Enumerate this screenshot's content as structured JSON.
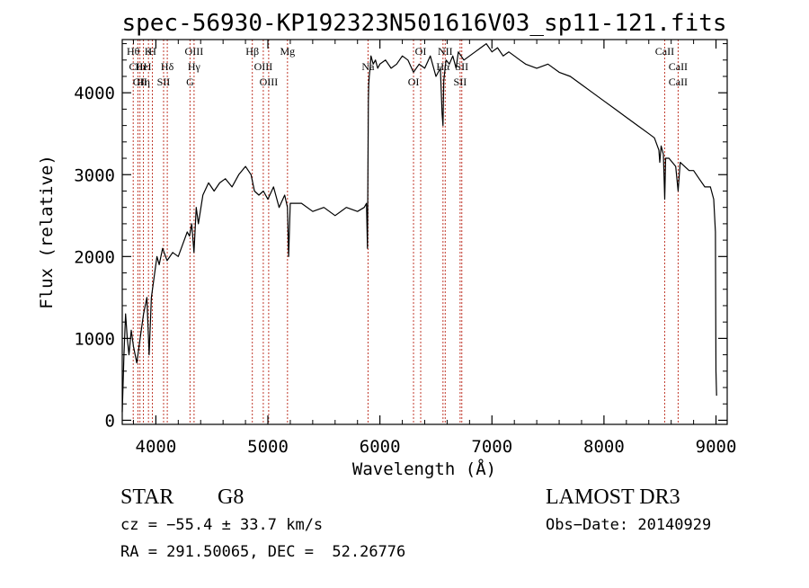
{
  "chart_data": {
    "type": "line",
    "title": "spec-56930-KP192323N501616V03_sp11-121.fits",
    "xlabel": "Wavelength (Å)",
    "ylabel": "Flux (relative)",
    "xlim": [
      3700,
      9100
    ],
    "ylim": [
      -50,
      4650
    ],
    "x_ticks": [
      4000,
      5000,
      6000,
      7000,
      8000,
      9000
    ],
    "y_ticks": [
      0,
      1000,
      2000,
      3000,
      4000
    ],
    "grid": false,
    "series": [
      {
        "x": [
          3700,
          3715,
          3730,
          3745,
          3760,
          3780,
          3800,
          3830,
          3860,
          3890,
          3920,
          3940,
          3960,
          3990,
          4010,
          4030,
          4060,
          4100,
          4150,
          4200,
          4240,
          4280,
          4300,
          4320,
          4340,
          4360,
          4380,
          4420,
          4470,
          4520,
          4570,
          4620,
          4680,
          4740,
          4800,
          4850,
          4880,
          4920,
          4960,
          5000,
          5050,
          5100,
          5150,
          5175,
          5185,
          5200,
          5300,
          5400,
          5500,
          5600,
          5700,
          5800,
          5860,
          5880,
          5889,
          5893,
          5897,
          5900,
          5905,
          5912,
          5920,
          5940,
          5960,
          5980,
          6000,
          6050,
          6100,
          6150,
          6200,
          6250,
          6300,
          6350,
          6400,
          6450,
          6500,
          6540,
          6555,
          6563,
          6570,
          6590,
          6620,
          6650,
          6680,
          6700,
          6750,
          6800,
          6850,
          6900,
          6950,
          7000,
          7050,
          7100,
          7150,
          7200,
          7250,
          7300,
          7400,
          7500,
          7600,
          7700,
          7800,
          7900,
          8000,
          8100,
          8200,
          8300,
          8400,
          8450,
          8490,
          8498,
          8510,
          8530,
          8542,
          8550,
          8580,
          8640,
          8662,
          8680,
          8720,
          8760,
          8800,
          8850,
          8900,
          8950,
          8980,
          8995,
          9000,
          9005
        ],
        "y": [
          100,
          800,
          1300,
          1000,
          800,
          1100,
          900,
          700,
          1000,
          1300,
          1500,
          800,
          1500,
          1800,
          2000,
          1900,
          2100,
          1950,
          2050,
          2000,
          2150,
          2300,
          2250,
          2400,
          2050,
          2600,
          2400,
          2750,
          2900,
          2800,
          2900,
          2950,
          2850,
          3000,
          3100,
          3000,
          2800,
          2750,
          2800,
          2700,
          2850,
          2600,
          2750,
          2600,
          2000,
          2650,
          2650,
          2550,
          2600,
          2500,
          2600,
          2550,
          2600,
          2650,
          2100,
          3000,
          3900,
          4100,
          4200,
          4300,
          4450,
          4350,
          4400,
          4300,
          4350,
          4400,
          4300,
          4350,
          4450,
          4400,
          4250,
          4350,
          4300,
          4450,
          4200,
          4300,
          3750,
          3600,
          4150,
          4400,
          4350,
          4450,
          4300,
          4500,
          4400,
          4450,
          4500,
          4550,
          4600,
          4500,
          4550,
          4450,
          4500,
          4450,
          4400,
          4350,
          4300,
          4350,
          4250,
          4200,
          4100,
          4000,
          3900,
          3800,
          3700,
          3600,
          3500,
          3450,
          3300,
          3150,
          3350,
          3250,
          2700,
          3200,
          3200,
          3100,
          2800,
          3150,
          3100,
          3050,
          3050,
          2950,
          2850,
          2850,
          2700,
          2300,
          600,
          300
        ]
      }
    ],
    "annotations": [
      {
        "label": "Hθ",
        "x": 3798
      },
      {
        "label": "CIII",
        "x": 3840
      },
      {
        "label": "CII",
        "x": 3858
      },
      {
        "label": "K",
        "x": 3934
      },
      {
        "label": "HeI",
        "x": 3889
      },
      {
        "label": "Hη",
        "x": 3889
      },
      {
        "label": "H",
        "x": 3969
      },
      {
        "label": "Hδ",
        "x": 4102
      },
      {
        "label": "SII",
        "x": 4069
      },
      {
        "label": "OIII",
        "x": 4341
      },
      {
        "label": "Hγ",
        "x": 4341
      },
      {
        "label": "G",
        "x": 4305
      },
      {
        "label": "Hβ",
        "x": 4861
      },
      {
        "label": "OIII",
        "x": 4959
      },
      {
        "label": "OIII",
        "x": 5007
      },
      {
        "label": "Mg",
        "x": 5175
      },
      {
        "label": "Na",
        "x": 5894
      },
      {
        "label": "OI",
        "x": 6300
      },
      {
        "label": "OI",
        "x": 6364
      },
      {
        "label": "Hα",
        "x": 6563
      },
      {
        "label": "SII",
        "x": 6716
      },
      {
        "label": "NII",
        "x": 6583
      },
      {
        "label": "SII",
        "x": 6731
      },
      {
        "label": "CaII",
        "x": 8662
      },
      {
        "label": "CaII",
        "x": 8542
      },
      {
        "label": "CaII",
        "x": 8662
      }
    ]
  },
  "info": {
    "object_class": "STAR",
    "subclass": "G8",
    "redshift_line": "cz = −55.4 ± 33.7 km/s",
    "coords_line": "RA = 291.50065, DEC =  52.26776",
    "survey": "LAMOST DR3",
    "obs_date": "Obs−Date: 20140929"
  }
}
